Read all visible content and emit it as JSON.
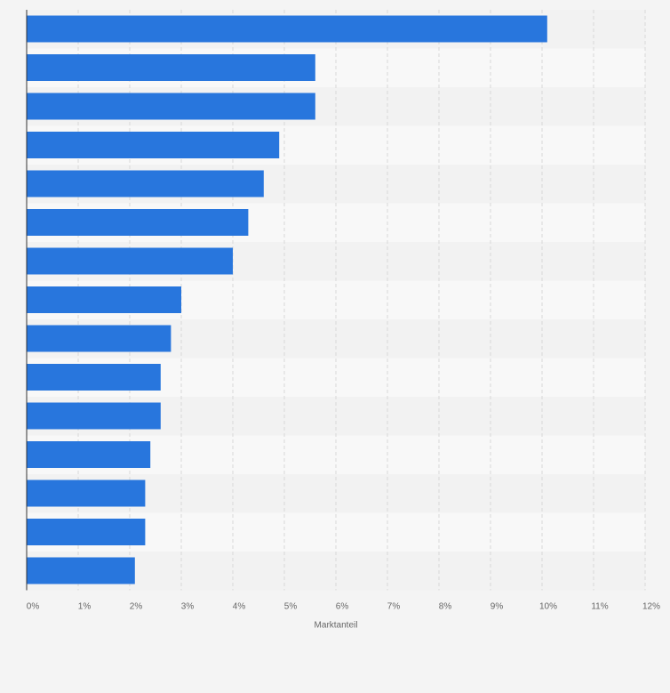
{
  "chart_data": {
    "type": "bar",
    "orientation": "horizontal",
    "title": "",
    "xlabel": "Marktanteil",
    "ylabel": "",
    "categories": [
      "",
      "",
      "",
      "",
      "",
      "",
      "",
      "",
      "",
      "",
      "",
      "",
      "",
      "",
      ""
    ],
    "values": [
      10.1,
      5.6,
      5.6,
      4.9,
      4.6,
      4.3,
      4.0,
      3.0,
      2.8,
      2.6,
      2.6,
      2.4,
      2.3,
      2.3,
      2.1
    ],
    "xlim": [
      0,
      12
    ],
    "ticks": [
      0,
      1,
      2,
      3,
      4,
      5,
      6,
      7,
      8,
      9,
      10,
      11,
      12
    ],
    "tick_suffix": "%",
    "grid": true,
    "colors": {
      "bar": "#2876dd",
      "band_dark": "#f2f2f2",
      "band_light": "#f8f8f8",
      "grid": "#d8d8d8",
      "axis": "#333333",
      "text": "#666666"
    }
  }
}
